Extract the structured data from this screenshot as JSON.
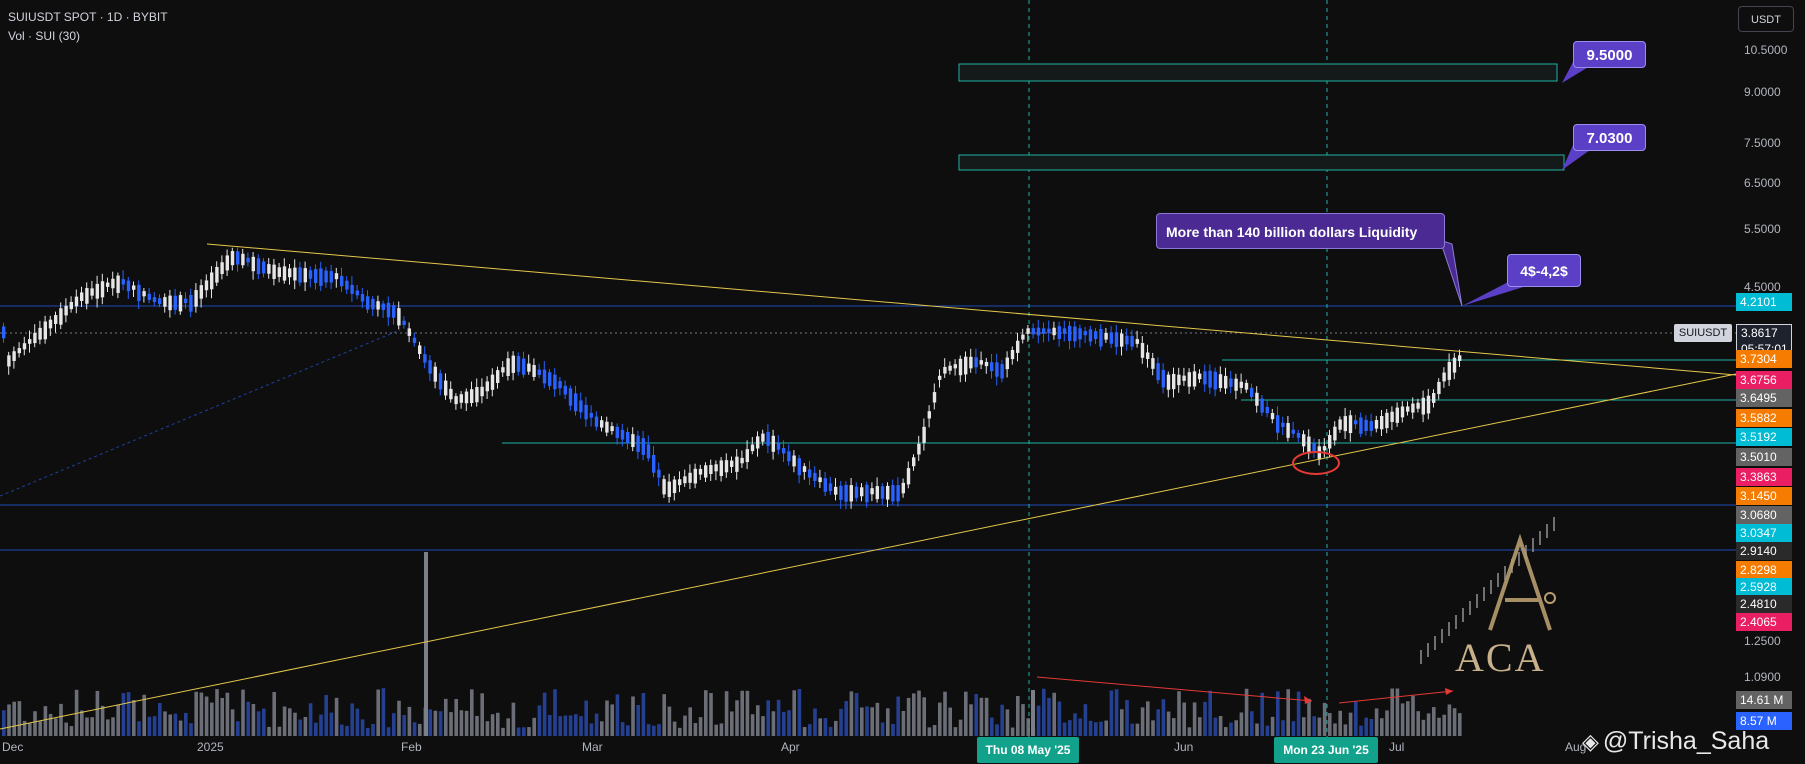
{
  "header": {
    "title": "SUIUSDT SPOT · 1D · BYBIT",
    "indicator": "Vol · SUI (30)"
  },
  "currency_button": "USDT",
  "callouts": {
    "target_high": "9.5000",
    "target_mid": "7.0300",
    "liquidity_note": "More than 140 billion dollars Liquidity",
    "range_note": "4$-4,2$"
  },
  "symbol_label": "SUIUSDT",
  "current_price": "3.8617",
  "countdown": "05:57:01",
  "y_axis_ticks": [
    "10.5000",
    "9.0000",
    "7.5000",
    "6.5000",
    "5.5000",
    "4.5000",
    "1.2500",
    "1.0900"
  ],
  "price_tags": [
    {
      "text": "4.2101",
      "color": "#00bcd4"
    },
    {
      "text": "3.7304",
      "color": "#f57c00"
    },
    {
      "text": "3.6756",
      "color": "#e91e63"
    },
    {
      "text": "3.6495",
      "color": "#636363"
    },
    {
      "text": "3.5882",
      "color": "#f57c00"
    },
    {
      "text": "3.5192",
      "color": "#00bcd4"
    },
    {
      "text": "3.5010",
      "color": "#636363"
    },
    {
      "text": "3.3863",
      "color": "#e91e63"
    },
    {
      "text": "3.1450",
      "color": "#f57c00"
    },
    {
      "text": "3.0680",
      "color": "#636363"
    },
    {
      "text": "3.0347",
      "color": "#00bcd4"
    },
    {
      "text": "2.9140",
      "color": "#2a2a2a"
    },
    {
      "text": "2.8298",
      "color": "#f57c00"
    },
    {
      "text": "2.5928",
      "color": "#00bcd4"
    },
    {
      "text": "2.4810",
      "color": "#2a2a2a"
    },
    {
      "text": "2.4065",
      "color": "#e91e63"
    }
  ],
  "volume_tags": [
    {
      "text": "14.61 M",
      "color": "#636363"
    },
    {
      "text": "8.57 M",
      "color": "#2962ff"
    }
  ],
  "x_axis_ticks": [
    "Dec",
    "2025",
    "Feb",
    "Mar",
    "Apr",
    "Jun",
    "Jul",
    "Aug"
  ],
  "crosshair_dates": [
    "Thu 08 May '25",
    "Mon 23 Jun '25"
  ],
  "watermark": {
    "brand": "ACA",
    "handle": "@Trisha_Saha"
  },
  "colors": {
    "background": "#0e0e0f",
    "bull_candle": "#e6e6e6",
    "bear_candle": "#2962ff",
    "trendline": "#e6c84a",
    "level_line": "#2e5ea8",
    "teal": "#1fb3a4",
    "callout": "#5b3fc7"
  }
}
